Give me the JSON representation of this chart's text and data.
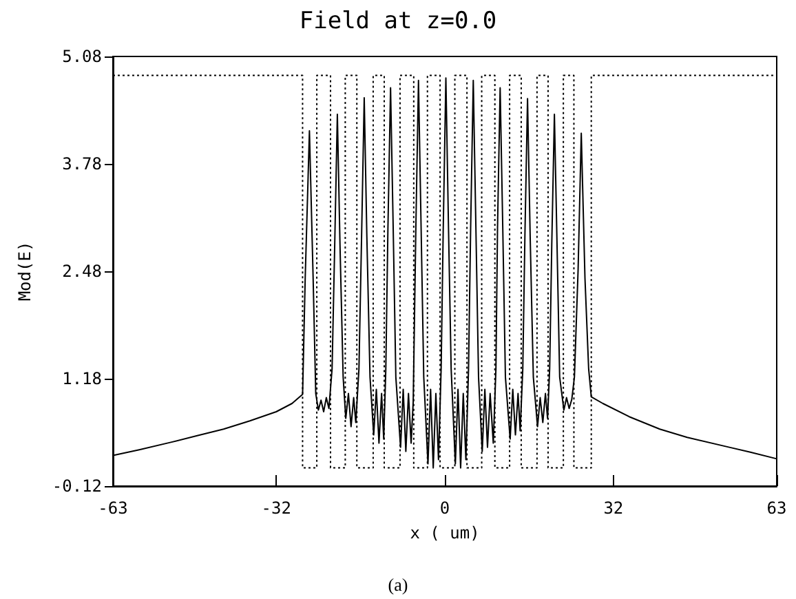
{
  "chart_data": {
    "type": "line",
    "title": "Field at z=0.0",
    "xlabel": "x ( um)",
    "ylabel": "Mod(E)",
    "annotations": [
      "(a)"
    ],
    "xlim": [
      -63,
      63
    ],
    "xticks": [
      -63,
      -32,
      0,
      32,
      63
    ],
    "ylim": [
      -0.12,
      5.08
    ],
    "yticks": [
      -0.12,
      1.18,
      2.48,
      3.78,
      5.08
    ],
    "grid": false,
    "marker": "none",
    "series": [
      {
        "color": "#000000",
        "line_style": "solid",
        "x": [
          -63,
          -58,
          -52,
          -47,
          -42,
          -37,
          -32,
          -29,
          -27,
          -26.5,
          -25.7,
          -25.0,
          -24.5,
          -24.0,
          -23.5,
          -23.0,
          -22.5,
          -22.0,
          -21.4,
          -20.9,
          -20.4,
          -19.9,
          -19.3,
          -18.8,
          -18.3,
          -17.8,
          -17.3,
          -16.9,
          -16.3,
          -15.8,
          -15.3,
          -14.8,
          -14.2,
          -13.5,
          -13.0,
          -12.5,
          -12.0,
          -11.6,
          -11.2,
          -10.8,
          -10.3,
          -9.8,
          -9.3,
          -8.4,
          -7.9,
          -7.4,
          -6.9,
          -6.4,
          -6.0,
          -5.5,
          -5.0,
          -4.5,
          -4.0,
          -3.2,
          -2.7,
          -2.2,
          -1.7,
          -1.2,
          -0.7,
          -0.3,
          0.2,
          0.7,
          1.2,
          2.0,
          2.5,
          3.0,
          3.5,
          4.0,
          4.5,
          4.9,
          5.4,
          5.9,
          6.4,
          7.1,
          7.6,
          8.1,
          8.6,
          9.2,
          9.7,
          10.0,
          10.5,
          11.0,
          11.5,
          12.4,
          12.9,
          13.4,
          13.9,
          14.3,
          14.8,
          15.2,
          15.7,
          16.2,
          16.8,
          17.6,
          18.1,
          18.6,
          19.1,
          19.5,
          19.9,
          20.3,
          20.8,
          21.3,
          21.8,
          22.6,
          23.1,
          23.6,
          24.1,
          24.6,
          25.3,
          25.9,
          26.6,
          27.3,
          27.8,
          30,
          35,
          40.8,
          46,
          54,
          58,
          63
        ],
        "values": [
          0.25,
          0.32,
          0.41,
          0.49,
          0.57,
          0.67,
          0.78,
          0.88,
          0.99,
          2.4,
          4.18,
          2.4,
          1.0,
          0.8,
          0.92,
          0.78,
          0.95,
          0.82,
          1.3,
          2.8,
          4.38,
          2.8,
          1.2,
          0.7,
          1.0,
          0.6,
          0.95,
          0.65,
          1.3,
          2.9,
          4.58,
          2.9,
          1.2,
          0.5,
          1.05,
          0.4,
          1.0,
          0.45,
          1.3,
          3.0,
          4.7,
          3.0,
          1.2,
          0.35,
          1.05,
          0.3,
          1.0,
          0.4,
          0.9,
          3.0,
          4.79,
          3.0,
          1.2,
          0.15,
          1.05,
          0.1,
          1.0,
          0.2,
          1.3,
          3.0,
          4.82,
          3.0,
          1.3,
          0.15,
          1.05,
          0.1,
          1.0,
          0.2,
          1.3,
          3.0,
          4.79,
          3.0,
          1.2,
          0.3,
          1.05,
          0.35,
          1.0,
          0.4,
          1.3,
          3.0,
          4.7,
          3.0,
          1.2,
          0.45,
          1.05,
          0.5,
          1.0,
          0.55,
          1.3,
          2.9,
          4.57,
          2.9,
          1.2,
          0.6,
          0.95,
          0.65,
          1.0,
          0.7,
          1.3,
          2.8,
          4.38,
          2.8,
          1.2,
          0.8,
          0.95,
          0.82,
          0.93,
          1.2,
          2.5,
          4.15,
          2.4,
          1.3,
          0.96,
          0.88,
          0.72,
          0.57,
          0.47,
          0.35,
          0.29,
          0.21
        ]
      },
      {
        "color": "#000000",
        "line_style": "dotted",
        "x": [
          -63,
          -27,
          -27,
          -24.3,
          -24.3,
          -21.7,
          -21.7,
          -18.9,
          -18.9,
          -16.7,
          -16.7,
          -13.6,
          -13.6,
          -11.5,
          -11.5,
          -8.5,
          -8.5,
          -5.9,
          -5.9,
          -3.3,
          -3.3,
          -0.9,
          -0.9,
          1.9,
          1.9,
          4.2,
          4.2,
          7.0,
          7.0,
          9.5,
          9.5,
          12.3,
          12.3,
          14.5,
          14.5,
          17.5,
          17.5,
          19.6,
          19.6,
          22.5,
          22.5,
          24.5,
          24.5,
          27.8,
          27.8,
          63
        ],
        "values": [
          4.85,
          4.85,
          0.1,
          0.1,
          4.85,
          4.85,
          0.1,
          0.1,
          4.85,
          4.85,
          0.1,
          0.1,
          4.85,
          4.85,
          0.1,
          0.1,
          4.85,
          4.85,
          0.1,
          0.1,
          4.85,
          4.85,
          0.1,
          0.1,
          4.85,
          4.85,
          0.1,
          0.1,
          4.85,
          4.85,
          0.1,
          0.1,
          4.85,
          4.85,
          0.1,
          0.1,
          4.85,
          4.85,
          0.1,
          0.1,
          4.85,
          4.85,
          0.1,
          0.1,
          4.85,
          4.85
        ]
      }
    ]
  }
}
